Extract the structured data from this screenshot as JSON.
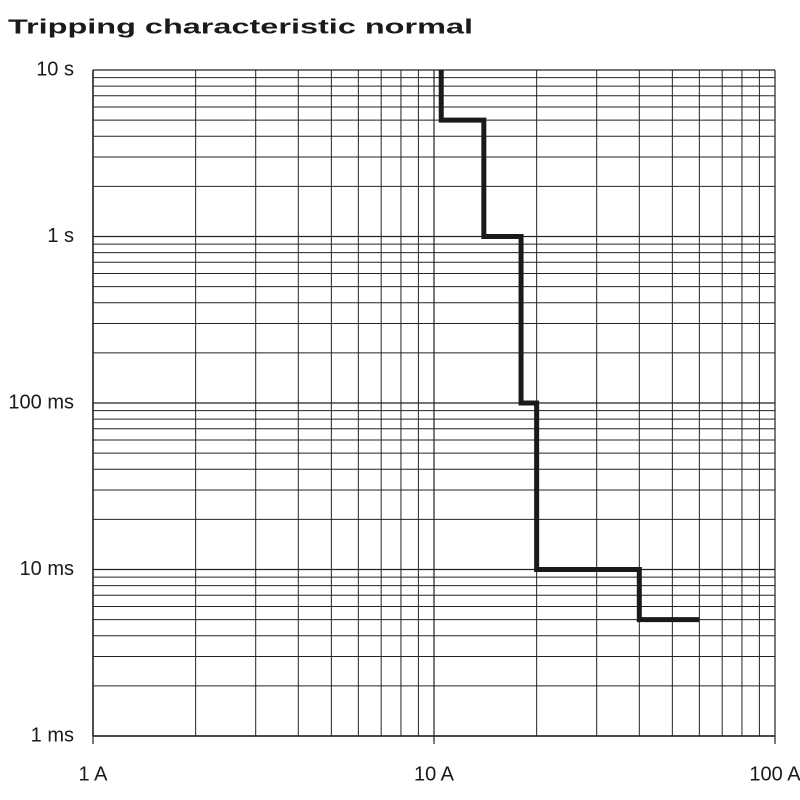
{
  "chart_data": {
    "type": "line",
    "title": "Tripping characteristic normal",
    "log_x": true,
    "log_y": true,
    "grid": true,
    "xlim": [
      1,
      100
    ],
    "xticks": [
      {
        "value": 1,
        "label": "1 A"
      },
      {
        "value": 10,
        "label": "10 A"
      },
      {
        "value": 100,
        "label": "100 A"
      }
    ],
    "ylim": [
      0.001,
      10
    ],
    "yticks": [
      {
        "value": 0.001,
        "label": "1 ms"
      },
      {
        "value": 0.01,
        "label": "10 ms"
      },
      {
        "value": 0.1,
        "label": "100 ms"
      },
      {
        "value": 1,
        "label": "1 s"
      },
      {
        "value": 10,
        "label": "10 s"
      }
    ],
    "series": [
      {
        "color": "#1a1a1a",
        "x": [
          10.5,
          10.5,
          14,
          14,
          18,
          18,
          20,
          20,
          40,
          40,
          60
        ],
        "values": [
          10,
          5,
          5,
          1,
          1,
          0.1,
          0.1,
          0.01,
          0.01,
          0.005,
          0.005
        ]
      }
    ]
  }
}
